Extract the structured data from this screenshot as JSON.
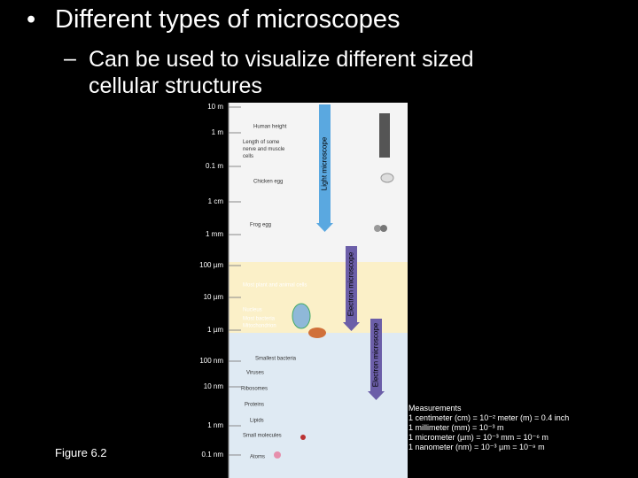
{
  "title": "Different types of microscopes",
  "subtitle": "Can be used to visualize different sized cellular structures",
  "figure": {
    "scale_labels": [
      "10 m",
      "1 m",
      "0.1 m",
      "1 cm",
      "1 mm",
      "100 µm",
      "10 µm",
      "1 µm",
      "100 nm",
      "10 nm",
      "1 nm",
      "0.1 nm"
    ],
    "items": [
      "Human height",
      "Length of some nerve and muscle cells",
      "Chicken egg",
      "Frog egg",
      "Most plant and animal cells",
      "Nucleus",
      "Most bacteria",
      "Mitochondrion",
      "Smallest bacteria",
      "Viruses",
      "Ribosomes",
      "Proteins",
      "Lipids",
      "Small molecules",
      "Atoms"
    ],
    "microscopes": [
      "Light microscope",
      "Electron microscope",
      "Electron microscope"
    ]
  },
  "measurements": {
    "heading": "Measurements",
    "lines": [
      "1 centimeter (cm) = 10⁻² meter (m) = 0.4 inch",
      "1 millimeter (mm) = 10⁻³ m",
      "1 micrometer (µm) = 10⁻³ mm = 10⁻⁶ m",
      "1 nanometer (nm) = 10⁻³ µm = 10⁻⁹ m"
    ]
  },
  "figure_label": "Figure 6.2"
}
